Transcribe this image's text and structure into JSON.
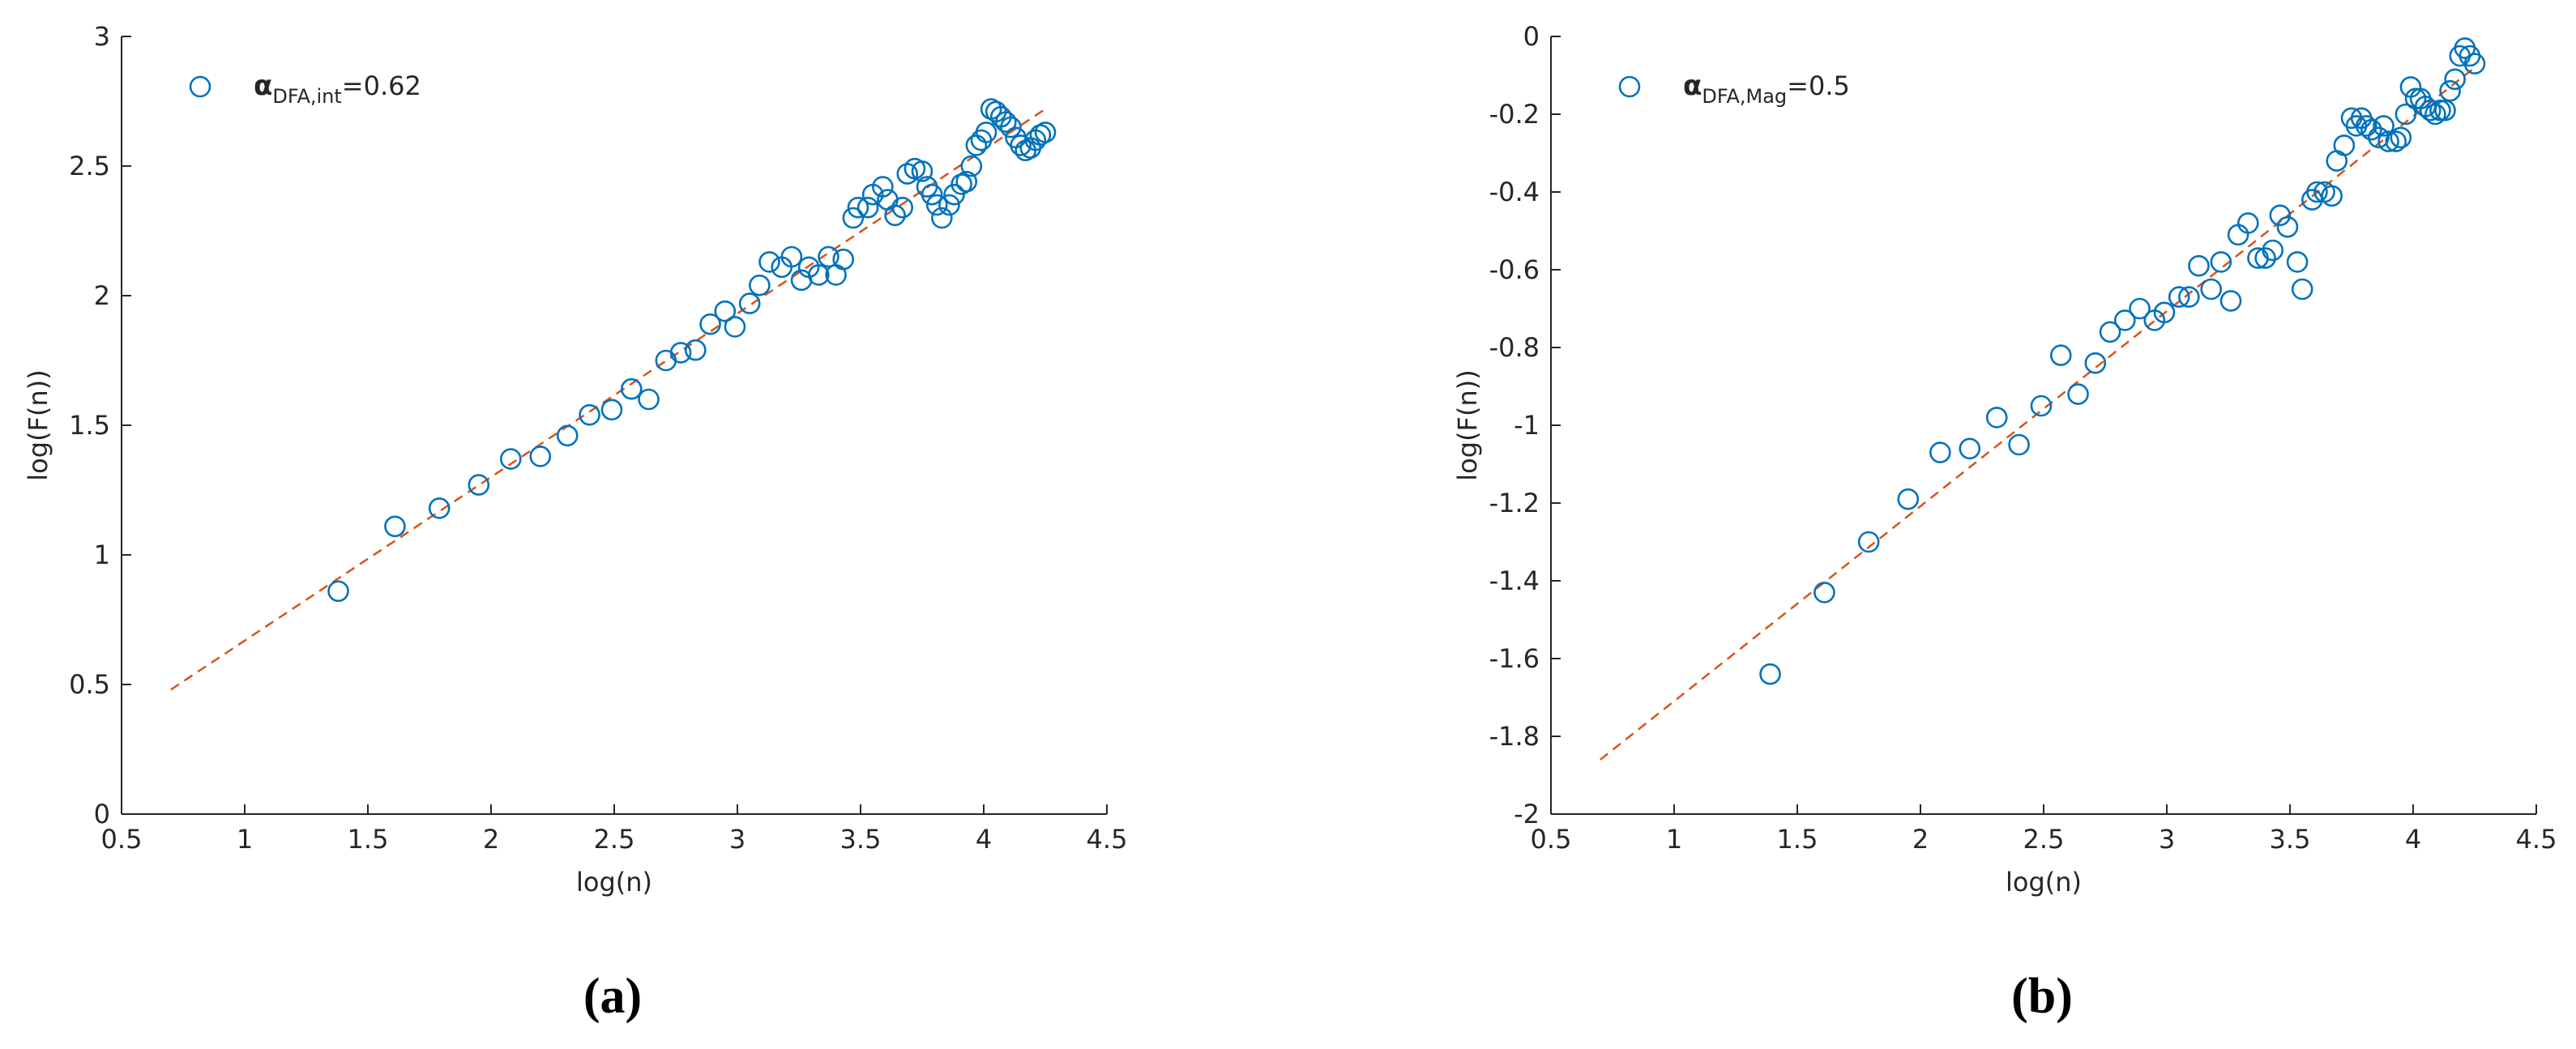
{
  "chart_data": [
    {
      "type": "scatter",
      "caption": "(a)",
      "xlabel": "log(n)",
      "ylabel": "log(F(n))",
      "xlim": [
        0.5,
        4.5
      ],
      "xticks": [
        0.5,
        1,
        1.5,
        2,
        2.5,
        3,
        3.5,
        4,
        4.5
      ],
      "ylim": [
        0,
        3
      ],
      "yticks": [
        0,
        0.5,
        1,
        1.5,
        2,
        2.5,
        3
      ],
      "legend": "upper left",
      "series": [
        {
          "name": [
            "α",
            "DFA,int",
            "=0.62"
          ],
          "color": "#0072bd",
          "x": [
            1.38,
            1.61,
            1.79,
            1.95,
            2.08,
            2.2,
            2.31,
            2.4,
            2.49,
            2.57,
            2.64,
            2.71,
            2.77,
            2.83,
            2.89,
            2.95,
            2.99,
            3.05,
            3.09,
            3.13,
            3.18,
            3.22,
            3.26,
            3.29,
            3.33,
            3.37,
            3.4,
            3.43,
            3.47,
            3.49,
            3.53,
            3.55,
            3.59,
            3.61,
            3.64,
            3.67,
            3.69,
            3.72,
            3.75,
            3.77,
            3.79,
            3.81,
            3.83,
            3.86,
            3.88,
            3.91,
            3.93,
            3.95,
            3.97,
            3.99,
            4.01,
            4.03,
            4.05,
            4.07,
            4.09,
            4.11,
            4.13,
            4.15,
            4.17,
            4.19,
            4.21,
            4.23,
            4.25
          ],
          "values": [
            0.86,
            1.11,
            1.18,
            1.27,
            1.37,
            1.38,
            1.46,
            1.54,
            1.56,
            1.64,
            1.6,
            1.75,
            1.78,
            1.79,
            1.89,
            1.94,
            1.88,
            1.97,
            2.04,
            2.13,
            2.11,
            2.15,
            2.06,
            2.11,
            2.08,
            2.15,
            2.08,
            2.14,
            2.3,
            2.34,
            2.34,
            2.39,
            2.42,
            2.37,
            2.31,
            2.34,
            2.47,
            2.49,
            2.48,
            2.42,
            2.39,
            2.35,
            2.3,
            2.35,
            2.39,
            2.43,
            2.44,
            2.5,
            2.58,
            2.6,
            2.63,
            2.72,
            2.71,
            2.69,
            2.67,
            2.65,
            2.61,
            2.58,
            2.56,
            2.57,
            2.6,
            2.62,
            2.63
          ]
        }
      ],
      "fit_line": {
        "color": "#d95319",
        "x": [
          0.7,
          4.25
        ],
        "values": [
          0.48,
          2.72
        ]
      }
    },
    {
      "type": "scatter",
      "caption": "(b)",
      "xlabel": "log(n)",
      "ylabel": "log(F(n))",
      "xlim": [
        0.5,
        4.5
      ],
      "xticks": [
        0.5,
        1,
        1.5,
        2,
        2.5,
        3,
        3.5,
        4,
        4.5
      ],
      "ylim": [
        -2,
        0
      ],
      "yticks": [
        -2,
        -1.8,
        -1.6,
        -1.4,
        -1.2,
        -1,
        -0.8,
        -0.6,
        -0.4,
        -0.2,
        0
      ],
      "legend": "upper left",
      "series": [
        {
          "name": [
            "α",
            "DFA,Mag",
            "=0.5"
          ],
          "color": "#0072bd",
          "x": [
            1.39,
            1.61,
            1.79,
            1.95,
            2.08,
            2.2,
            2.31,
            2.4,
            2.49,
            2.57,
            2.64,
            2.71,
            2.77,
            2.83,
            2.89,
            2.95,
            2.99,
            3.05,
            3.09,
            3.13,
            3.18,
            3.22,
            3.26,
            3.29,
            3.33,
            3.37,
            3.4,
            3.43,
            3.46,
            3.49,
            3.53,
            3.55,
            3.59,
            3.61,
            3.64,
            3.67,
            3.69,
            3.72,
            3.75,
            3.77,
            3.79,
            3.81,
            3.83,
            3.86,
            3.88,
            3.9,
            3.93,
            3.95,
            3.97,
            3.99,
            4.01,
            4.03,
            4.05,
            4.07,
            4.09,
            4.11,
            4.13,
            4.15,
            4.17,
            4.19,
            4.21,
            4.23,
            4.25
          ],
          "values": [
            -1.64,
            -1.43,
            -1.3,
            -1.19,
            -1.07,
            -1.06,
            -0.98,
            -1.05,
            -0.95,
            -0.82,
            -0.92,
            -0.84,
            -0.76,
            -0.73,
            -0.7,
            -0.73,
            -0.71,
            -0.67,
            -0.67,
            -0.59,
            -0.65,
            -0.58,
            -0.68,
            -0.51,
            -0.48,
            -0.57,
            -0.57,
            -0.55,
            -0.46,
            -0.49,
            -0.58,
            -0.65,
            -0.42,
            -0.4,
            -0.4,
            -0.41,
            -0.32,
            -0.28,
            -0.21,
            -0.23,
            -0.21,
            -0.23,
            -0.24,
            -0.26,
            -0.23,
            -0.27,
            -0.27,
            -0.26,
            -0.2,
            -0.13,
            -0.16,
            -0.16,
            -0.18,
            -0.19,
            -0.2,
            -0.19,
            -0.19,
            -0.14,
            -0.11,
            -0.05,
            -0.03,
            -0.05,
            -0.07
          ]
        }
      ],
      "fit_line": {
        "color": "#d95319",
        "x": [
          0.7,
          4.25
        ],
        "values": [
          -1.86,
          -0.08
        ]
      }
    }
  ]
}
